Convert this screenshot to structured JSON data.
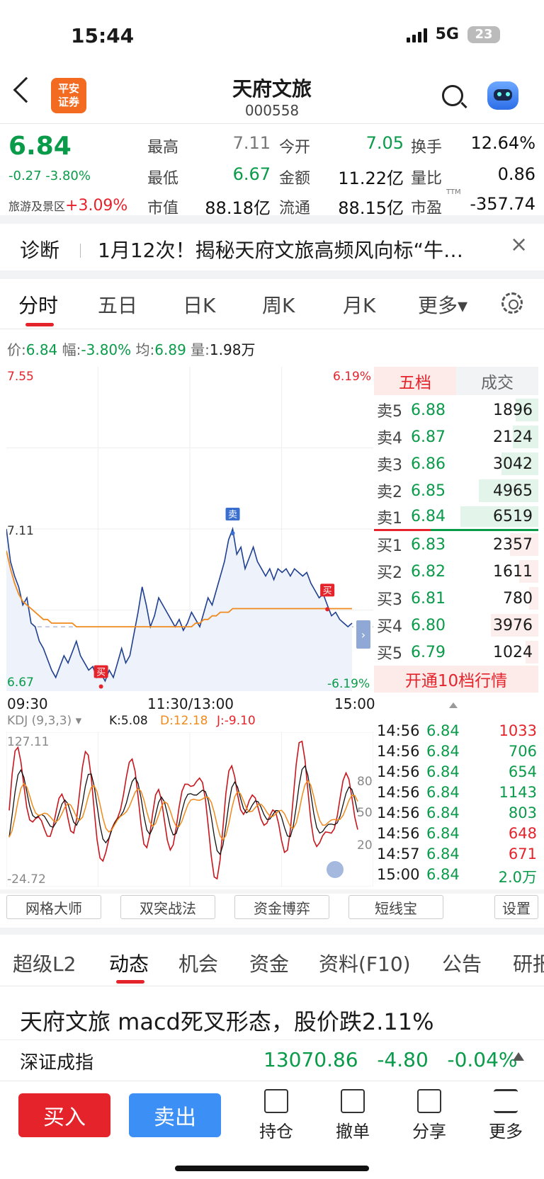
{
  "status": {
    "time": "15:44",
    "network": "5G",
    "battery": "23"
  },
  "header": {
    "logo": "平安\n证券",
    "title": "天府文旅",
    "code": "000558"
  },
  "quote": {
    "price": "6.84",
    "change": "-0.27 -3.80%",
    "sector_name": "旅游及景区",
    "sector_change": "+3.09%",
    "stats": [
      {
        "label": "最高",
        "value": "7.11",
        "color": "gray"
      },
      {
        "label": "今开",
        "value": "7.05",
        "color": "green"
      },
      {
        "label": "换手",
        "value": "12.64%",
        "color": "dark"
      },
      {
        "label": "最低",
        "value": "6.67",
        "color": "green"
      },
      {
        "label": "金额",
        "value": "11.22亿",
        "color": "dark"
      },
      {
        "label": "量比",
        "value": "0.86",
        "color": "dark"
      },
      {
        "label": "市值",
        "value": "88.18亿",
        "color": "dark"
      },
      {
        "label": "流通",
        "value": "88.15亿",
        "color": "dark"
      },
      {
        "label": "市盈",
        "value": "-357.74",
        "color": "dark"
      }
    ],
    "pe_superscript": "TTM"
  },
  "diagnosis": {
    "label": "诊断",
    "text": "1月12次！揭秘天府文旅高频风向标“牛…",
    "close": "×"
  },
  "chart_tabs": [
    "分时",
    "五日",
    "日K",
    "周K",
    "月K",
    "更多▾"
  ],
  "info_line": {
    "price_label": "价:",
    "price": "6.84",
    "range_label": "幅:",
    "range": "-3.80%",
    "avg_label": "均:",
    "avg": "6.89",
    "vol_label": "量:",
    "vol": "1.98万"
  },
  "chart_labels": {
    "top_left": "7.55",
    "top_right": "6.19%",
    "mid_left": "7.11",
    "bottom_left": "6.67",
    "bottom_right": "-6.19%",
    "time_start": "09:30",
    "time_mid": "11:30/13:00",
    "time_end": "15:00",
    "sell_marker": "卖",
    "buy_marker": "买",
    "kdj_name": "KDJ (9,3,3) ▾",
    "kdj_k": "K:5.08",
    "kdj_d": "D:12.18",
    "kdj_j": "J:-9.10",
    "kdj_top": "127.11",
    "kdj_bottom": "-24.72",
    "kdj_80": "80",
    "kdj_50": "50",
    "kdj_20": "20"
  },
  "chart_data": {
    "type": "line",
    "title": "",
    "ylim": [
      6.67,
      7.55
    ],
    "series": [
      {
        "name": "价",
        "color": "#1f3f8f",
        "values": [
          7.11,
          7.02,
          6.98,
          6.95,
          6.9,
          6.92,
          6.85,
          6.84,
          6.8,
          6.78,
          6.75,
          6.72,
          6.7,
          6.73,
          6.76,
          6.74,
          6.77,
          6.8,
          6.76,
          6.74,
          6.72,
          6.73,
          6.7,
          6.71,
          6.69,
          6.72,
          6.7,
          6.74,
          6.78,
          6.74,
          6.76,
          6.82,
          6.88,
          6.95,
          6.9,
          6.84,
          6.87,
          6.92,
          6.9,
          6.88,
          6.86,
          6.84,
          6.86,
          6.83,
          6.85,
          6.88,
          6.86,
          6.84,
          6.88,
          6.92,
          6.9,
          6.94,
          6.98,
          7.02,
          7.08,
          7.11,
          7.04,
          7.06,
          7.0,
          7.03,
          7.06,
          7.02,
          7.0,
          6.98,
          7.0,
          6.97,
          7.0,
          6.99,
          7.0,
          6.98,
          7.0,
          6.99,
          6.98,
          6.99,
          6.96,
          6.94,
          6.92,
          6.93,
          6.9,
          6.87,
          6.88,
          6.86,
          6.85,
          6.84,
          6.85
        ]
      },
      {
        "name": "均",
        "color": "#f08a1c",
        "values": [
          7.05,
          7.0,
          6.96,
          6.93,
          6.91,
          6.9,
          6.89,
          6.88,
          6.87,
          6.86,
          6.86,
          6.85,
          6.85,
          6.85,
          6.85,
          6.85,
          6.85,
          6.84,
          6.84,
          6.84,
          6.84,
          6.84,
          6.84,
          6.84,
          6.84,
          6.84,
          6.84,
          6.84,
          6.84,
          6.84,
          6.84,
          6.84,
          6.84,
          6.84,
          6.84,
          6.84,
          6.84,
          6.84,
          6.84,
          6.84,
          6.84,
          6.84,
          6.84,
          6.84,
          6.84,
          6.84,
          6.85,
          6.85,
          6.86,
          6.86,
          6.87,
          6.87,
          6.88,
          6.88,
          6.88,
          6.89,
          6.89,
          6.89,
          6.89,
          6.89,
          6.89,
          6.89,
          6.89,
          6.89,
          6.89,
          6.89,
          6.89,
          6.89,
          6.89,
          6.89,
          6.89,
          6.89,
          6.89,
          6.89,
          6.89,
          6.89,
          6.89,
          6.89,
          6.89,
          6.89,
          6.89,
          6.89,
          6.89,
          6.89,
          6.89
        ]
      }
    ],
    "reference": 7.11
  },
  "orderbook": {
    "tabs": [
      "五档",
      "成交"
    ],
    "asks": [
      {
        "label": "卖5",
        "price": "6.88",
        "vol": "1896",
        "ratio": 0.29
      },
      {
        "label": "卖4",
        "price": "6.87",
        "vol": "2124",
        "ratio": 0.33
      },
      {
        "label": "卖3",
        "price": "6.86",
        "vol": "3042",
        "ratio": 0.47
      },
      {
        "label": "卖2",
        "price": "6.85",
        "vol": "4965",
        "ratio": 0.76
      },
      {
        "label": "卖1",
        "price": "6.84",
        "vol": "6519",
        "ratio": 1.0
      }
    ],
    "bids": [
      {
        "label": "买1",
        "price": "6.83",
        "vol": "2357",
        "ratio": 0.36
      },
      {
        "label": "买2",
        "price": "6.82",
        "vol": "1611",
        "ratio": 0.25
      },
      {
        "label": "买3",
        "price": "6.81",
        "vol": "780",
        "ratio": 0.12
      },
      {
        "label": "买4",
        "price": "6.80",
        "vol": "3976",
        "ratio": 0.61
      },
      {
        "label": "买5",
        "price": "6.79",
        "vol": "1024",
        "ratio": 0.16
      }
    ],
    "upgrade": "开通10档行情"
  },
  "ticks": [
    {
      "time": "14:56",
      "price": "6.84",
      "vol": "1033",
      "side": "red"
    },
    {
      "time": "14:56",
      "price": "6.84",
      "vol": "706",
      "side": "green"
    },
    {
      "time": "14:56",
      "price": "6.84",
      "vol": "654",
      "side": "green"
    },
    {
      "time": "14:56",
      "price": "6.84",
      "vol": "1143",
      "side": "green"
    },
    {
      "time": "14:56",
      "price": "6.84",
      "vol": "803",
      "side": "green"
    },
    {
      "time": "14:56",
      "price": "6.84",
      "vol": "648",
      "side": "red"
    },
    {
      "time": "14:57",
      "price": "6.84",
      "vol": "671",
      "side": "red"
    },
    {
      "time": "15:00",
      "price": "6.84",
      "vol": "2.0万",
      "side": "green"
    }
  ],
  "tools": [
    "网格大师",
    "双突战法",
    "资金博弈",
    "短线宝",
    "设置"
  ],
  "news_tabs": [
    "超级L2",
    "动态",
    "机会",
    "资金",
    "资料(F10)",
    "公告",
    "研报"
  ],
  "news_headline": "天府文旅 macd死叉形态，股价跌2.11%",
  "index": {
    "name": "深证成指",
    "value": "13070.86",
    "change": "-4.80",
    "pct": "-0.04%"
  },
  "actions": {
    "buy": "买入",
    "sell": "卖出",
    "items": [
      "持仓",
      "撤单",
      "分享",
      "更多"
    ]
  }
}
